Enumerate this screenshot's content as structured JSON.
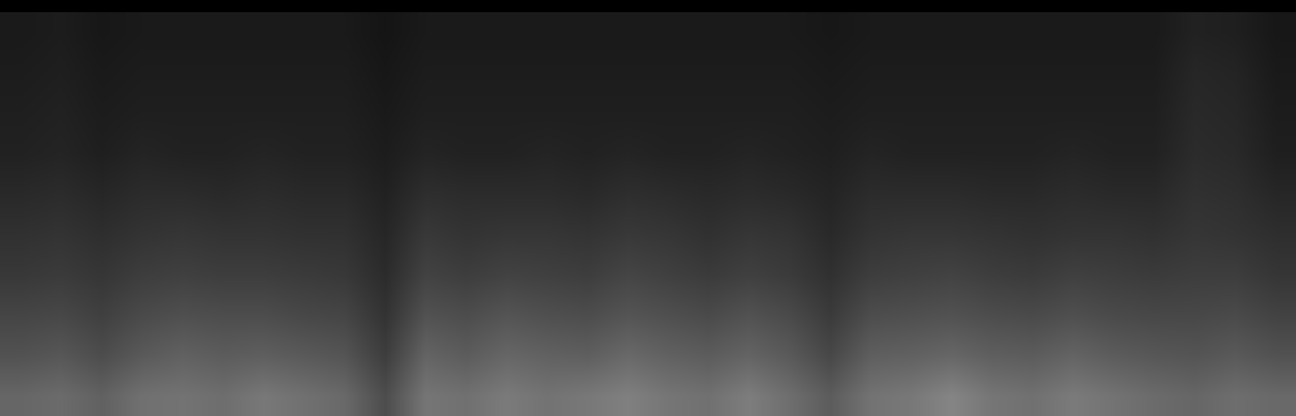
{
  "chart_data": {
    "type": "heatmap",
    "tick_labels": false,
    "zlim": [
      0,
      1
    ],
    "z": [
      [
        0.4,
        0.42,
        0.38,
        0.44,
        0.45,
        0.43,
        0.47,
        0.44,
        0.41,
        0.3,
        0.46,
        0.44,
        0.48,
        0.45,
        0.47,
        0.5,
        0.46,
        0.44,
        0.49,
        0.43,
        0.36,
        0.45,
        0.47,
        0.52,
        0.46,
        0.44,
        0.48,
        0.45,
        0.42,
        0.4,
        0.43,
        0.41
      ],
      [
        0.32,
        0.34,
        0.3,
        0.35,
        0.38,
        0.36,
        0.37,
        0.35,
        0.33,
        0.24,
        0.39,
        0.36,
        0.4,
        0.38,
        0.37,
        0.41,
        0.38,
        0.36,
        0.39,
        0.35,
        0.28,
        0.37,
        0.38,
        0.4,
        0.37,
        0.36,
        0.39,
        0.36,
        0.34,
        0.33,
        0.35,
        0.32
      ],
      [
        0.27,
        0.28,
        0.25,
        0.29,
        0.31,
        0.3,
        0.3,
        0.28,
        0.27,
        0.2,
        0.32,
        0.3,
        0.33,
        0.31,
        0.3,
        0.33,
        0.31,
        0.29,
        0.32,
        0.29,
        0.23,
        0.3,
        0.31,
        0.32,
        0.3,
        0.29,
        0.31,
        0.29,
        0.28,
        0.28,
        0.29,
        0.26
      ],
      [
        0.22,
        0.23,
        0.21,
        0.24,
        0.25,
        0.24,
        0.24,
        0.23,
        0.22,
        0.17,
        0.26,
        0.24,
        0.26,
        0.25,
        0.24,
        0.27,
        0.25,
        0.23,
        0.25,
        0.23,
        0.19,
        0.24,
        0.25,
        0.26,
        0.24,
        0.23,
        0.25,
        0.24,
        0.23,
        0.24,
        0.24,
        0.21
      ],
      [
        0.19,
        0.2,
        0.18,
        0.2,
        0.21,
        0.2,
        0.2,
        0.19,
        0.19,
        0.15,
        0.22,
        0.2,
        0.21,
        0.21,
        0.2,
        0.22,
        0.21,
        0.19,
        0.21,
        0.2,
        0.16,
        0.2,
        0.21,
        0.21,
        0.2,
        0.19,
        0.2,
        0.2,
        0.19,
        0.21,
        0.2,
        0.18
      ],
      [
        0.16,
        0.17,
        0.15,
        0.17,
        0.17,
        0.16,
        0.17,
        0.16,
        0.16,
        0.13,
        0.18,
        0.17,
        0.17,
        0.17,
        0.16,
        0.18,
        0.17,
        0.16,
        0.17,
        0.16,
        0.14,
        0.17,
        0.17,
        0.17,
        0.16,
        0.16,
        0.17,
        0.16,
        0.16,
        0.19,
        0.18,
        0.15
      ],
      [
        0.13,
        0.14,
        0.12,
        0.14,
        0.13,
        0.13,
        0.14,
        0.13,
        0.13,
        0.11,
        0.14,
        0.13,
        0.13,
        0.14,
        0.13,
        0.14,
        0.13,
        0.13,
        0.14,
        0.13,
        0.12,
        0.14,
        0.13,
        0.13,
        0.13,
        0.13,
        0.14,
        0.13,
        0.13,
        0.17,
        0.16,
        0.12
      ],
      [
        0.12,
        0.13,
        0.11,
        0.12,
        0.12,
        0.12,
        0.12,
        0.12,
        0.12,
        0.1,
        0.12,
        0.12,
        0.12,
        0.12,
        0.12,
        0.12,
        0.12,
        0.12,
        0.12,
        0.12,
        0.11,
        0.12,
        0.12,
        0.12,
        0.12,
        0.12,
        0.12,
        0.12,
        0.12,
        0.16,
        0.15,
        0.11
      ],
      [
        0.11,
        0.12,
        0.1,
        0.11,
        0.11,
        0.11,
        0.11,
        0.11,
        0.11,
        0.09,
        0.11,
        0.11,
        0.11,
        0.11,
        0.11,
        0.11,
        0.11,
        0.11,
        0.11,
        0.11,
        0.1,
        0.11,
        0.11,
        0.11,
        0.11,
        0.11,
        0.11,
        0.11,
        0.11,
        0.15,
        0.14,
        0.1
      ],
      [
        0.1,
        0.11,
        0.09,
        0.1,
        0.1,
        0.1,
        0.1,
        0.1,
        0.1,
        0.08,
        0.1,
        0.1,
        0.1,
        0.1,
        0.1,
        0.1,
        0.1,
        0.1,
        0.1,
        0.1,
        0.09,
        0.1,
        0.1,
        0.1,
        0.1,
        0.1,
        0.1,
        0.1,
        0.1,
        0.13,
        0.12,
        0.09
      ]
    ]
  }
}
